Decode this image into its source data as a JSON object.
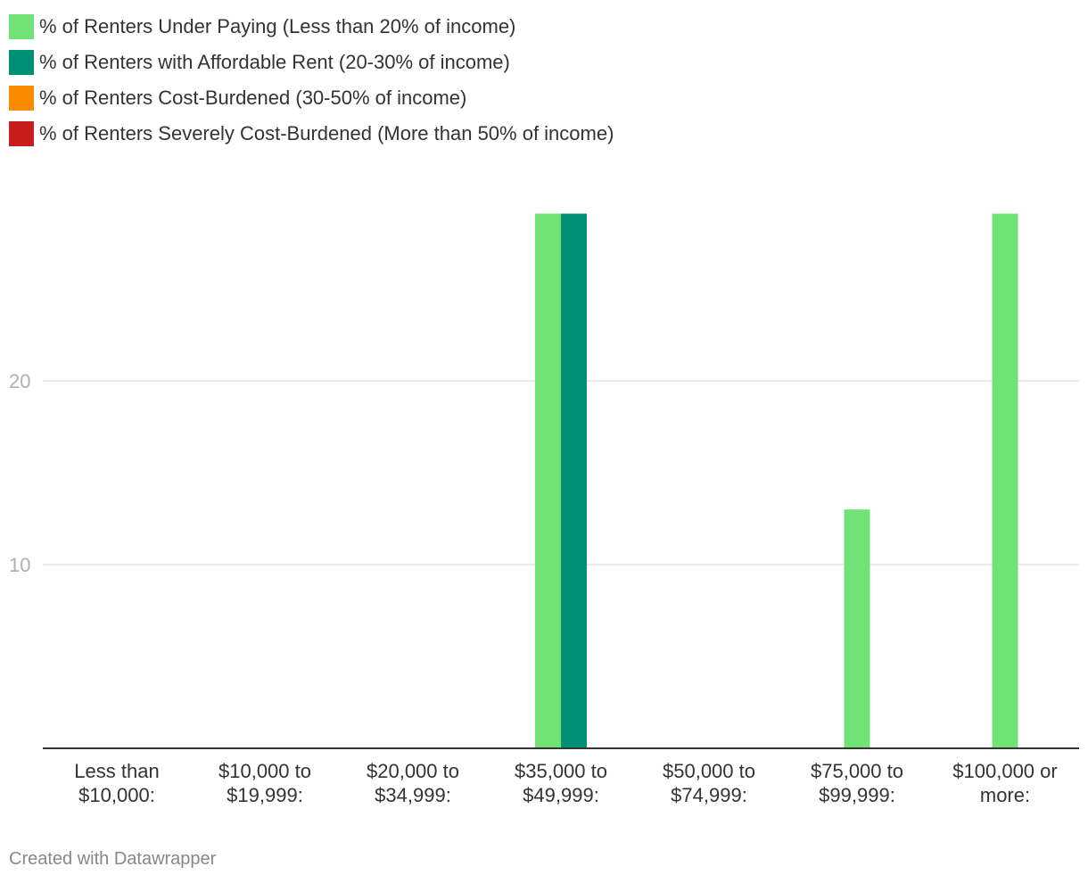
{
  "chart_data": {
    "type": "bar",
    "categories": [
      [
        "Less than",
        "$10,000:"
      ],
      [
        "$10,000 to",
        "$19,999:"
      ],
      [
        "$20,000 to",
        "$34,999:"
      ],
      [
        "$35,000 to",
        "$49,999:"
      ],
      [
        "$50,000 to",
        "$74,999:"
      ],
      [
        "$75,000 to",
        "$99,999:"
      ],
      [
        "$100,000 or",
        "more:"
      ]
    ],
    "series": [
      {
        "name": "% of Renters Under Paying (Less than 20% of income)",
        "color": "#71e376",
        "values": [
          0,
          0,
          0,
          29.1,
          0,
          13.0,
          29.1
        ]
      },
      {
        "name": "% of Renters with Affordable Rent (20-30% of income)",
        "color": "#009075",
        "values": [
          0,
          0,
          0,
          29.1,
          0,
          0,
          0
        ]
      },
      {
        "name": "% of Renters Cost-Burdened (30-50% of income)",
        "color": "#fa8c00",
        "values": [
          0,
          0,
          0,
          0,
          0,
          0,
          0
        ]
      },
      {
        "name": "% of Renters Severely Cost-Burdened (More than 50% of income)",
        "color": "#c71e1d",
        "values": [
          0,
          0,
          0,
          0,
          0,
          0,
          0
        ]
      }
    ],
    "y_ticks": [
      10,
      20
    ],
    "ylim": [
      0,
      30
    ],
    "grid": true,
    "legend_position": "top-left"
  },
  "footer": {
    "credit": "Created with Datawrapper"
  }
}
